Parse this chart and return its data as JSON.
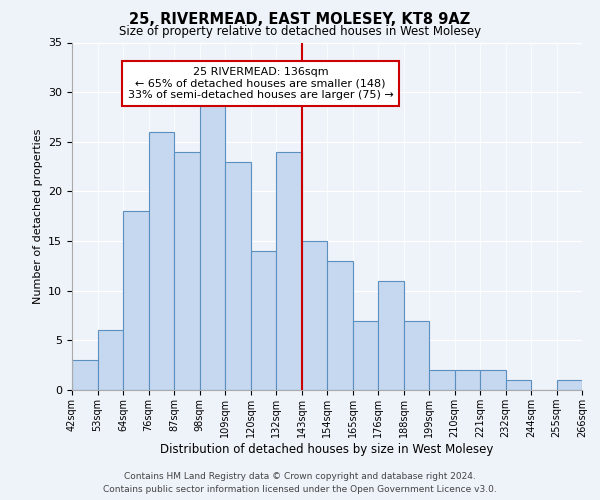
{
  "title": "25, RIVERMEAD, EAST MOLESEY, KT8 9AZ",
  "subtitle": "Size of property relative to detached houses in West Molesey",
  "xlabel": "Distribution of detached houses by size in West Molesey",
  "ylabel": "Number of detached properties",
  "bin_labels": [
    "42sqm",
    "53sqm",
    "64sqm",
    "76sqm",
    "87sqm",
    "98sqm",
    "109sqm",
    "120sqm",
    "132sqm",
    "143sqm",
    "154sqm",
    "165sqm",
    "176sqm",
    "188sqm",
    "199sqm",
    "210sqm",
    "221sqm",
    "232sqm",
    "244sqm",
    "255sqm",
    "266sqm"
  ],
  "bar_values": [
    3,
    6,
    18,
    26,
    24,
    29,
    23,
    14,
    24,
    15,
    13,
    7,
    11,
    7,
    2,
    2,
    2,
    1,
    0,
    1
  ],
  "bar_color": "#c5d8f0",
  "bar_edge_color": "#5a8fc0",
  "vline_x_idx": 8,
  "vline_color": "#cc0000",
  "ylim": [
    0,
    35
  ],
  "yticks": [
    0,
    5,
    10,
    15,
    20,
    25,
    30,
    35
  ],
  "annotation_title": "25 RIVERMEAD: 136sqm",
  "annotation_line1": "← 65% of detached houses are smaller (148)",
  "annotation_line2": "33% of semi-detached houses are larger (75) →",
  "annotation_box_color": "#cc0000",
  "footer_line1": "Contains HM Land Registry data © Crown copyright and database right 2024.",
  "footer_line2": "Contains public sector information licensed under the Open Government Licence v3.0.",
  "background_color": "#eef2f9"
}
